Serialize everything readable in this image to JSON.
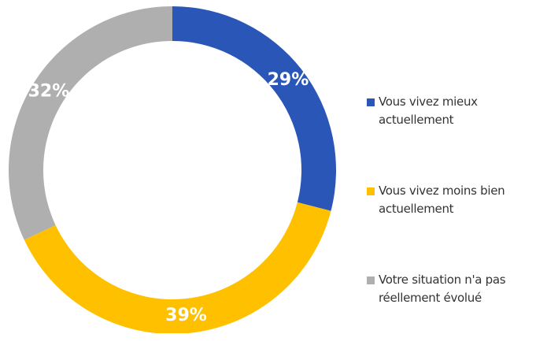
{
  "chart_data": {
    "type": "donut",
    "categories": [
      "Vous vivez mieux actuellement",
      "Vous vivez moins bien actuellement",
      "Votre situation n'a pas réellement évolué"
    ],
    "values": [
      29,
      39,
      32
    ],
    "value_labels": [
      "29%",
      "39%",
      "32%"
    ],
    "colors": [
      "#2a56b8",
      "#ffc000",
      "#afafaf"
    ],
    "legend": "right"
  }
}
